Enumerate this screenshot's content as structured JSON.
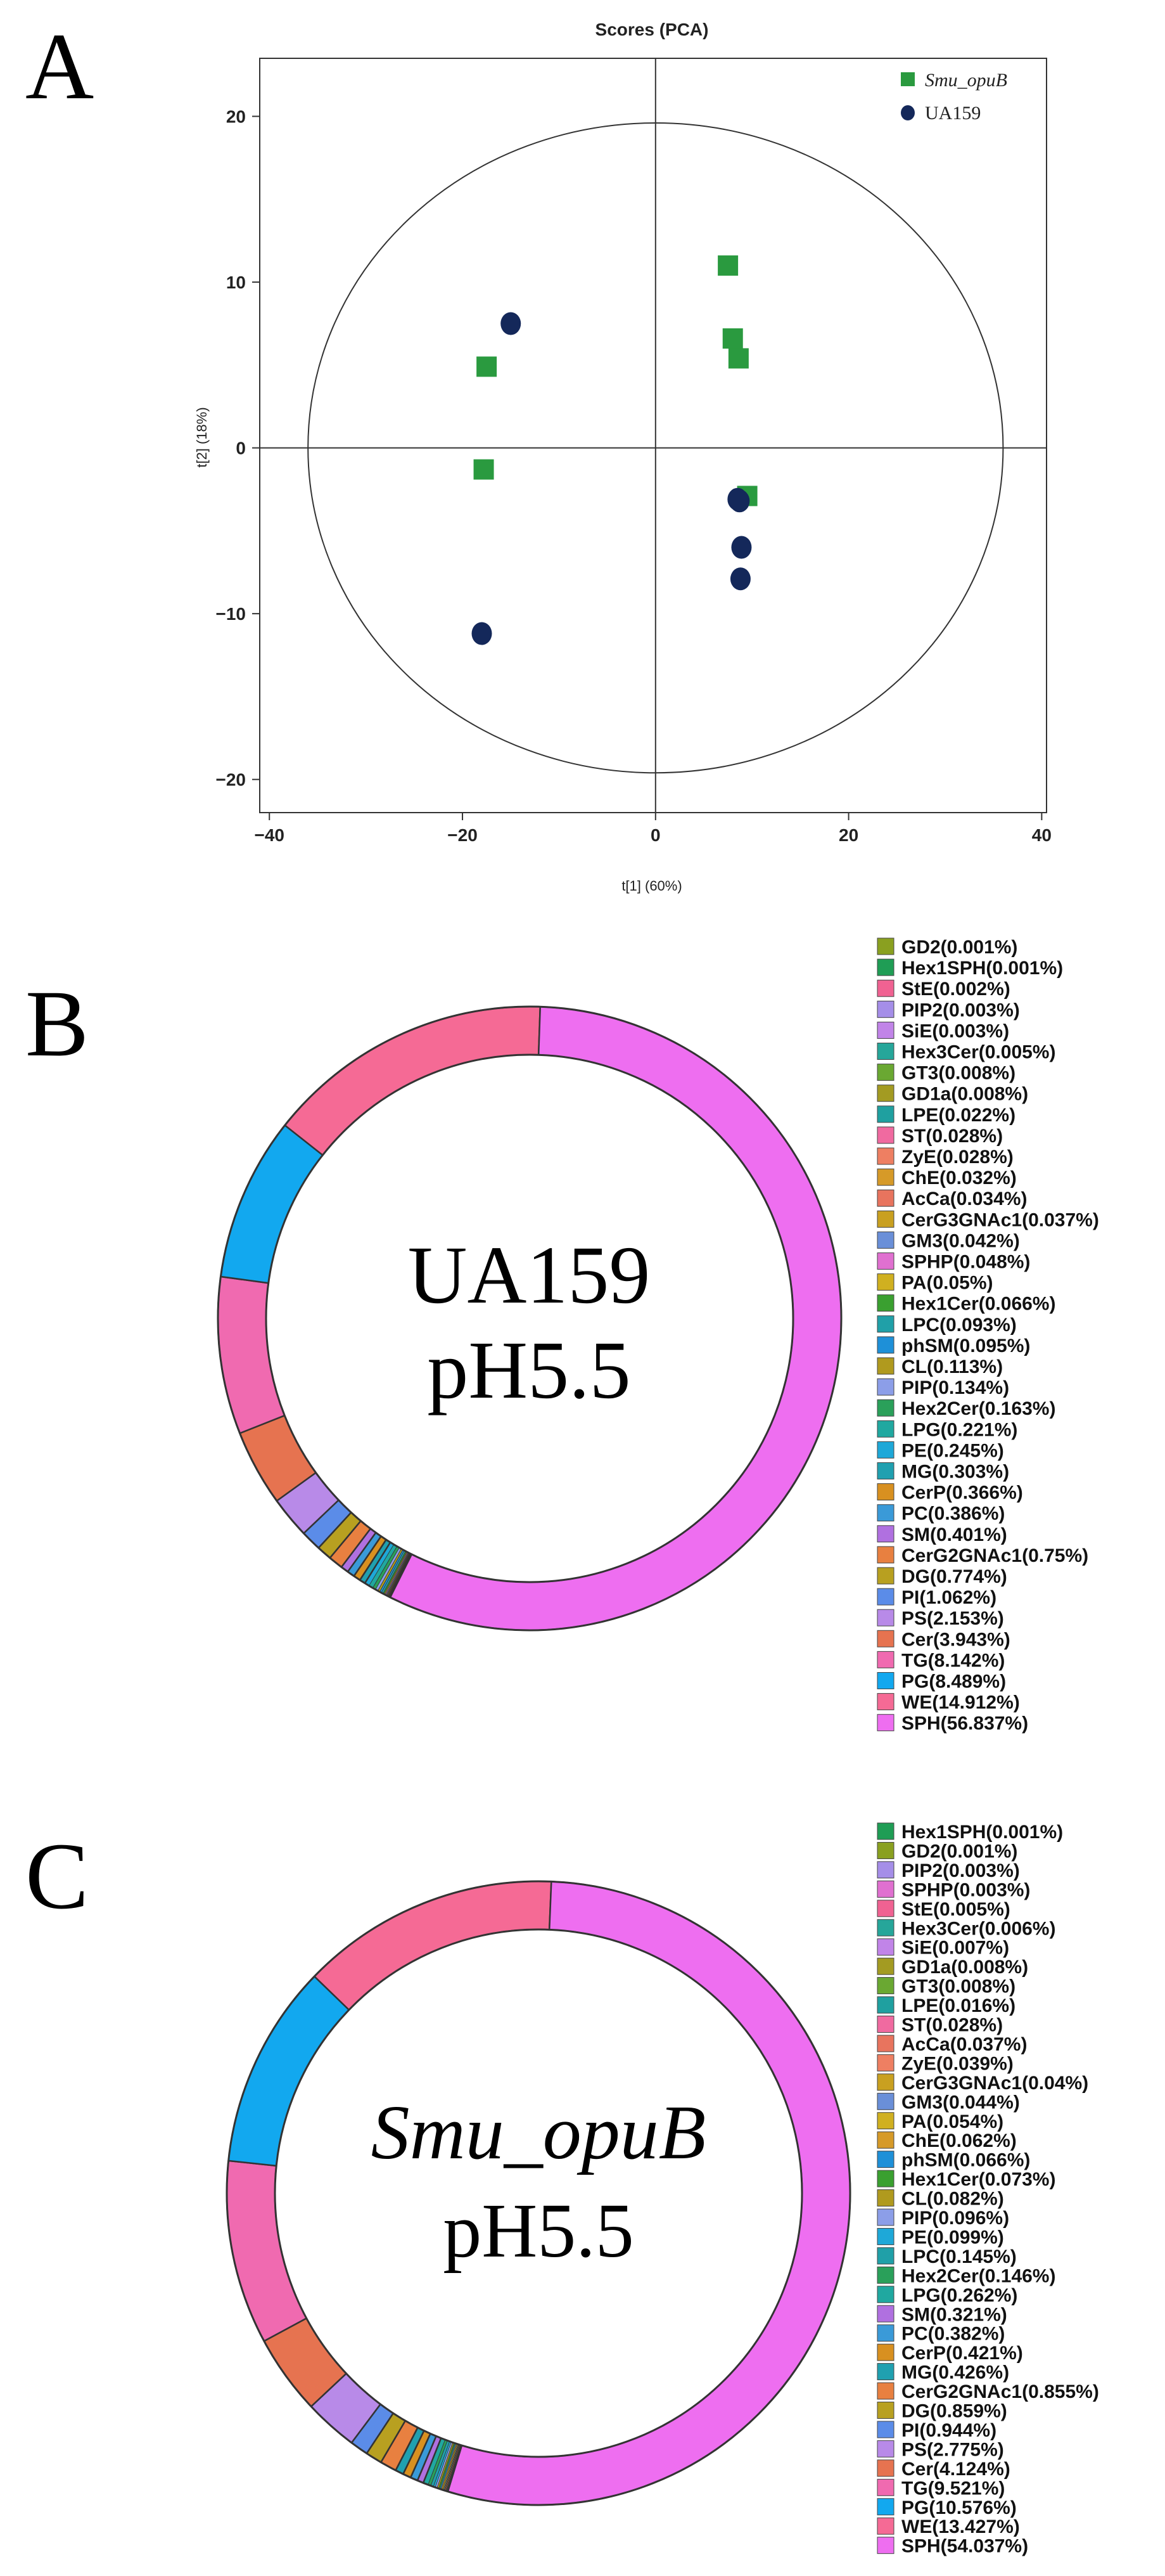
{
  "panels": {
    "a": {
      "letter": "A"
    },
    "b": {
      "letter": "B"
    },
    "c": {
      "letter": "C"
    }
  },
  "chart_data": [
    {
      "type": "scatter",
      "title": "Scores (PCA)",
      "xlabel": "t[1] (60%)",
      "ylabel": "t[2] (18%)",
      "xlim": [
        -41,
        40.5
      ],
      "ylim": [
        -22,
        23.5
      ],
      "xticks": [
        -40,
        -20,
        0,
        20,
        40
      ],
      "yticks": [
        -20,
        -10,
        0,
        10,
        20
      ],
      "ellipse": {
        "rx": 36,
        "ry": 19.6
      },
      "legend_position": "top-right",
      "series": [
        {
          "name": "Smu_opuB",
          "marker": "square",
          "color": "#2a9a3f",
          "points": [
            [
              7.5,
              11
            ],
            [
              8,
              6.6
            ],
            [
              8.6,
              5.4
            ],
            [
              -17.5,
              4.9
            ],
            [
              -17.8,
              -1.3
            ],
            [
              9.5,
              -2.9
            ]
          ]
        },
        {
          "name": "UA159",
          "marker": "circle",
          "color": "#14285a",
          "points": [
            [
              -15,
              7.5
            ],
            [
              8.5,
              -3.1
            ],
            [
              8.7,
              -3.2
            ],
            [
              8.9,
              -6
            ],
            [
              8.8,
              -7.9
            ],
            [
              -18,
              -11.2
            ]
          ]
        }
      ]
    },
    {
      "type": "pie",
      "style": "donut",
      "center_title": "UA159",
      "center_subtitle": "pH5.5",
      "slices": [
        {
          "label": "GD2(0.001%)",
          "value": 0.001,
          "color": "#8aa020"
        },
        {
          "label": "Hex1SPH(0.001%)",
          "value": 0.001,
          "color": "#1f9d55"
        },
        {
          "label": "StE(0.002%)",
          "value": 0.002,
          "color": "#f06292"
        },
        {
          "label": "PIP2(0.003%)",
          "value": 0.003,
          "color": "#a58ee8"
        },
        {
          "label": "SiE(0.003%)",
          "value": 0.003,
          "color": "#c184e8"
        },
        {
          "label": "Hex3Cer(0.005%)",
          "value": 0.005,
          "color": "#26a69a"
        },
        {
          "label": "GT3(0.008%)",
          "value": 0.008,
          "color": "#6aa832"
        },
        {
          "label": "GD1a(0.008%)",
          "value": 0.008,
          "color": "#a39b22"
        },
        {
          "label": "LPE(0.022%)",
          "value": 0.022,
          "color": "#1fa0a0"
        },
        {
          "label": "ST(0.028%)",
          "value": 0.028,
          "color": "#f06aa0"
        },
        {
          "label": "ZyE(0.028%)",
          "value": 0.028,
          "color": "#ee7f62"
        },
        {
          "label": "ChE(0.032%)",
          "value": 0.032,
          "color": "#d69a28"
        },
        {
          "label": "AcCa(0.034%)",
          "value": 0.034,
          "color": "#e8745e"
        },
        {
          "label": "CerG3GNAc1(0.037%)",
          "value": 0.037,
          "color": "#c9a020"
        },
        {
          "label": "GM3(0.042%)",
          "value": 0.042,
          "color": "#6a8fd8"
        },
        {
          "label": "SPHP(0.048%)",
          "value": 0.048,
          "color": "#e070d0"
        },
        {
          "label": "PA(0.05%)",
          "value": 0.05,
          "color": "#d0b020"
        },
        {
          "label": "Hex1Cer(0.066%)",
          "value": 0.066,
          "color": "#3aa030"
        },
        {
          "label": "LPC(0.093%)",
          "value": 0.093,
          "color": "#20a0a8"
        },
        {
          "label": "phSM(0.095%)",
          "value": 0.095,
          "color": "#1e90d8"
        },
        {
          "label": "CL(0.113%)",
          "value": 0.113,
          "color": "#b09a1e"
        },
        {
          "label": "PIP(0.134%)",
          "value": 0.134,
          "color": "#8c9ee8"
        },
        {
          "label": "Hex2Cer(0.163%)",
          "value": 0.163,
          "color": "#2aa05a"
        },
        {
          "label": "LPG(0.221%)",
          "value": 0.221,
          "color": "#20a8a0"
        },
        {
          "label": "PE(0.245%)",
          "value": 0.245,
          "color": "#1ea8d8"
        },
        {
          "label": "MG(0.303%)",
          "value": 0.303,
          "color": "#20a0b0"
        },
        {
          "label": "CerP(0.366%)",
          "value": 0.366,
          "color": "#d89020"
        },
        {
          "label": "PC(0.386%)",
          "value": 0.386,
          "color": "#3a9ad8"
        },
        {
          "label": "SM(0.401%)",
          "value": 0.401,
          "color": "#b070e0"
        },
        {
          "label": "CerG2GNAc1(0.75%)",
          "value": 0.75,
          "color": "#e88040"
        },
        {
          "label": "DG(0.774%)",
          "value": 0.774,
          "color": "#b8a020"
        },
        {
          "label": "PI(1.062%)",
          "value": 1.062,
          "color": "#5b8ce8"
        },
        {
          "label": "PS(2.153%)",
          "value": 2.153,
          "color": "#b88ae8"
        },
        {
          "label": "Cer(3.943%)",
          "value": 3.943,
          "color": "#e67350"
        },
        {
          "label": "TG(8.142%)",
          "value": 8.142,
          "color": "#f06ab0"
        },
        {
          "label": "PG(8.489%)",
          "value": 8.489,
          "color": "#12a8ef"
        },
        {
          "label": "WE(14.912%)",
          "value": 14.912,
          "color": "#f56a95"
        },
        {
          "label": "SPH(56.837%)",
          "value": 56.837,
          "color": "#ee6ef0"
        }
      ]
    },
    {
      "type": "pie",
      "style": "donut",
      "center_title": "Smu_opuB",
      "center_subtitle": "pH5.5",
      "slices": [
        {
          "label": "Hex1SPH(0.001%)",
          "value": 0.001,
          "color": "#1f9d55"
        },
        {
          "label": "GD2(0.001%)",
          "value": 0.001,
          "color": "#8aa020"
        },
        {
          "label": "PIP2(0.003%)",
          "value": 0.003,
          "color": "#a58ee8"
        },
        {
          "label": "SPHP(0.003%)",
          "value": 0.003,
          "color": "#e070d0"
        },
        {
          "label": "StE(0.005%)",
          "value": 0.005,
          "color": "#f06292"
        },
        {
          "label": "Hex3Cer(0.006%)",
          "value": 0.006,
          "color": "#26a69a"
        },
        {
          "label": "SiE(0.007%)",
          "value": 0.007,
          "color": "#c184e8"
        },
        {
          "label": "GD1a(0.008%)",
          "value": 0.008,
          "color": "#a39b22"
        },
        {
          "label": "GT3(0.008%)",
          "value": 0.008,
          "color": "#6aa832"
        },
        {
          "label": "LPE(0.016%)",
          "value": 0.016,
          "color": "#1fa0a0"
        },
        {
          "label": "ST(0.028%)",
          "value": 0.028,
          "color": "#f06aa0"
        },
        {
          "label": "AcCa(0.037%)",
          "value": 0.037,
          "color": "#e8745e"
        },
        {
          "label": "ZyE(0.039%)",
          "value": 0.039,
          "color": "#ee7f62"
        },
        {
          "label": "CerG3GNAc1(0.04%)",
          "value": 0.04,
          "color": "#c9a020"
        },
        {
          "label": "GM3(0.044%)",
          "value": 0.044,
          "color": "#6a8fd8"
        },
        {
          "label": "PA(0.054%)",
          "value": 0.054,
          "color": "#d0b020"
        },
        {
          "label": "ChE(0.062%)",
          "value": 0.062,
          "color": "#d69a28"
        },
        {
          "label": "phSM(0.066%)",
          "value": 0.066,
          "color": "#1e90d8"
        },
        {
          "label": "Hex1Cer(0.073%)",
          "value": 0.073,
          "color": "#3aa030"
        },
        {
          "label": "CL(0.082%)",
          "value": 0.082,
          "color": "#b09a1e"
        },
        {
          "label": "PIP(0.096%)",
          "value": 0.096,
          "color": "#8c9ee8"
        },
        {
          "label": "PE(0.099%)",
          "value": 0.099,
          "color": "#1ea8d8"
        },
        {
          "label": "LPC(0.145%)",
          "value": 0.145,
          "color": "#20a0a8"
        },
        {
          "label": "Hex2Cer(0.146%)",
          "value": 0.146,
          "color": "#2aa05a"
        },
        {
          "label": "LPG(0.262%)",
          "value": 0.262,
          "color": "#20a8a0"
        },
        {
          "label": "SM(0.321%)",
          "value": 0.321,
          "color": "#b070e0"
        },
        {
          "label": "PC(0.382%)",
          "value": 0.382,
          "color": "#3a9ad8"
        },
        {
          "label": "CerP(0.421%)",
          "value": 0.421,
          "color": "#d89020"
        },
        {
          "label": "MG(0.426%)",
          "value": 0.426,
          "color": "#20a0b0"
        },
        {
          "label": "CerG2GNAc1(0.855%)",
          "value": 0.855,
          "color": "#e88040"
        },
        {
          "label": "DG(0.859%)",
          "value": 0.859,
          "color": "#b8a020"
        },
        {
          "label": "PI(0.944%)",
          "value": 0.944,
          "color": "#5b8ce8"
        },
        {
          "label": "PS(2.775%)",
          "value": 2.775,
          "color": "#b88ae8"
        },
        {
          "label": "Cer(4.124%)",
          "value": 4.124,
          "color": "#e67350"
        },
        {
          "label": "TG(9.521%)",
          "value": 9.521,
          "color": "#f06ab0"
        },
        {
          "label": "PG(10.576%)",
          "value": 10.576,
          "color": "#12a8ef"
        },
        {
          "label": "WE(13.427%)",
          "value": 13.427,
          "color": "#f56a95"
        },
        {
          "label": "SPH(54.037%)",
          "value": 54.037,
          "color": "#ee6ef0"
        }
      ]
    }
  ]
}
